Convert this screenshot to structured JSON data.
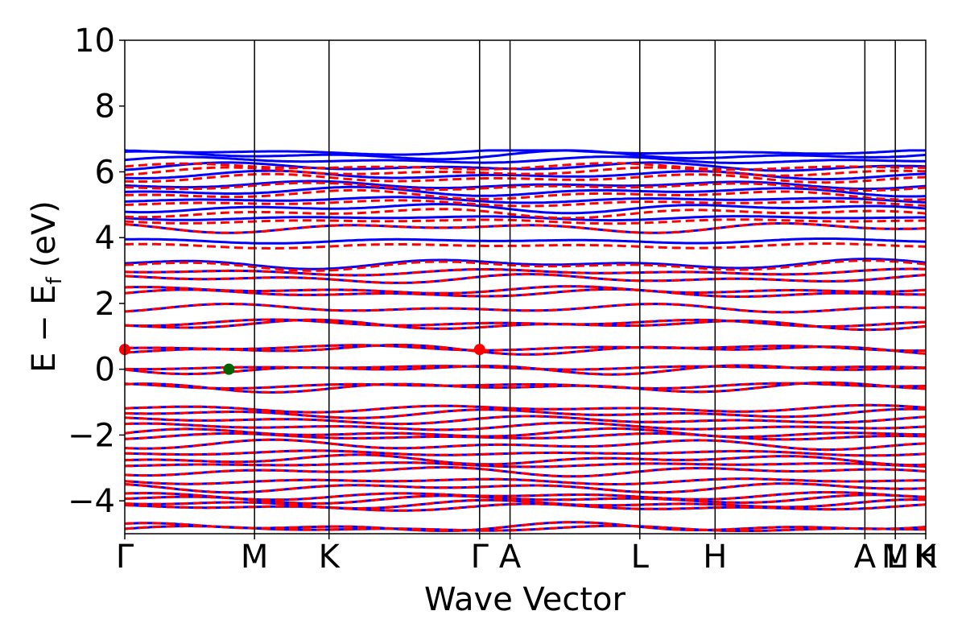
{
  "chart_data": {
    "type": "line",
    "xlabel": "Wave Vector",
    "ylabel": "E − E",
    "ylabel_sub": "f",
    "ylabel_unit": "(eV)",
    "ylim": [
      -5,
      10
    ],
    "yticks": [
      -4,
      -2,
      0,
      2,
      4,
      6,
      8,
      10
    ],
    "ytick_labels": [
      "−4",
      "−2",
      "0",
      "2",
      "4",
      "6",
      "8",
      "10"
    ],
    "xlim": [
      0,
      1
    ],
    "kpoints": [
      {
        "label": "Γ",
        "x": 0.0
      },
      {
        "label": "M",
        "x": 0.162
      },
      {
        "label": "K",
        "x": 0.255
      },
      {
        "label": "Γ",
        "x": 0.443
      },
      {
        "label": "A",
        "x": 0.481
      },
      {
        "label": "L",
        "x": 0.643
      },
      {
        "label": "H",
        "x": 0.737
      },
      {
        "label": "A",
        "x": 0.924
      },
      {
        "label": "M",
        "x": 0.962
      },
      {
        "label": "L",
        "x": 0.962
      },
      {
        "label": "K",
        "x": 1.0
      },
      {
        "label": "H",
        "x": 1.0
      }
    ],
    "colors": {
      "spin_up": "#0000ff",
      "spin_down": "#ff0000",
      "vbm": "#006400",
      "cbm": "#ff0000"
    },
    "series": [
      {
        "style": "solid",
        "color": "#0000ff",
        "bands": [
          -4.85,
          -4.8,
          -4.2,
          -4.1,
          -3.95,
          -3.85,
          -3.6,
          -3.4,
          -3.1,
          -2.9,
          -2.75,
          -2.55,
          -2.3,
          -2.05,
          -1.95,
          -1.75,
          -1.55,
          -1.35,
          -1.2,
          -0.55,
          -0.5,
          0.0,
          0.05,
          0.6,
          0.65,
          1.35,
          1.4,
          1.85,
          2.3,
          2.4,
          2.75,
          2.95,
          3.2,
          3.9,
          4.3,
          4.6,
          4.9,
          5.15,
          5.4,
          5.6,
          5.9,
          6.15,
          6.35,
          6.5,
          6.6
        ]
      },
      {
        "style": "dashed",
        "color": "#ff0000",
        "bands": [
          -4.85,
          -4.8,
          -4.2,
          -4.1,
          -3.95,
          -3.85,
          -3.6,
          -3.4,
          -3.1,
          -2.9,
          -2.75,
          -2.55,
          -2.3,
          -2.05,
          -1.95,
          -1.75,
          -1.55,
          -1.35,
          -1.2,
          -0.55,
          -0.5,
          0.0,
          0.05,
          0.6,
          0.65,
          1.35,
          1.4,
          1.85,
          2.3,
          2.4,
          2.75,
          2.95,
          3.15,
          3.75,
          4.3,
          4.5,
          4.75,
          5.05,
          5.3,
          5.55,
          5.8,
          6.0,
          6.15
        ]
      }
    ],
    "points": [
      {
        "x": 0.0,
        "y": 0.6,
        "color": "#ff0000"
      },
      {
        "x": 0.443,
        "y": 0.6,
        "color": "#ff0000"
      },
      {
        "x": 0.13,
        "y": 0.0,
        "color": "#006400"
      }
    ]
  }
}
